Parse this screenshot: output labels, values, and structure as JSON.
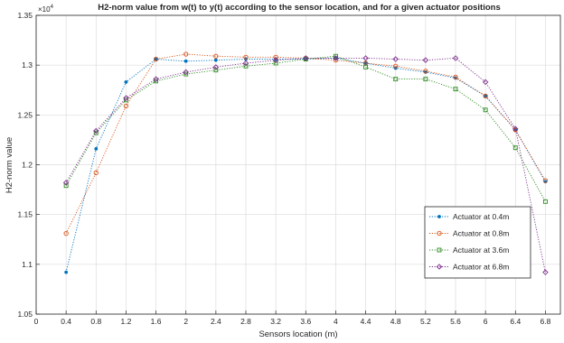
{
  "chart_data": {
    "type": "line",
    "title": "H2-norm value from w(t) to y(t) according to the sensor location, and for a given actuator positions",
    "xlabel": "Sensors location (m)",
    "ylabel": "H2-norm value",
    "y_exponent_label": "×10",
    "y_exponent_power": "4",
    "xlim": [
      0,
      7
    ],
    "ylim": [
      1.05,
      1.35
    ],
    "x_ticks": [
      "0",
      "0.4",
      "0.8",
      "1.2",
      "1.6",
      "2",
      "2.4",
      "2.8",
      "3.2",
      "3.6",
      "4",
      "4.4",
      "4.8",
      "5.2",
      "5.6",
      "6",
      "6.4",
      "6.8"
    ],
    "x_tick_values": [
      0,
      0.4,
      0.8,
      1.2,
      1.6,
      2,
      2.4,
      2.8,
      3.2,
      3.6,
      4,
      4.4,
      4.8,
      5.2,
      5.6,
      6,
      6.4,
      6.8
    ],
    "y_ticks": [
      "1.05",
      "1.1",
      "1.15",
      "1.2",
      "1.25",
      "1.3",
      "1.35"
    ],
    "y_tick_values": [
      1.05,
      1.1,
      1.15,
      1.2,
      1.25,
      1.3,
      1.35
    ],
    "grid": true,
    "legend_position": "bottom-right",
    "x": [
      0.4,
      0.8,
      1.2,
      1.6,
      2,
      2.4,
      2.8,
      3.2,
      3.6,
      4,
      4.4,
      4.8,
      5.2,
      5.6,
      6,
      6.4,
      6.8
    ],
    "series": [
      {
        "name": "Actuator at 0.4m",
        "color": "#0072BD",
        "marker": "point",
        "values": [
          1.092,
          1.216,
          1.283,
          1.306,
          1.304,
          1.305,
          1.306,
          1.306,
          1.306,
          1.307,
          1.302,
          1.297,
          1.293,
          1.287,
          1.269,
          1.235,
          1.183
        ]
      },
      {
        "name": "Actuator at 0.8m",
        "color": "#D95319",
        "marker": "circle",
        "values": [
          1.131,
          1.192,
          1.259,
          1.306,
          1.311,
          1.309,
          1.308,
          1.308,
          1.307,
          1.305,
          1.302,
          1.299,
          1.294,
          1.288,
          1.269,
          1.235,
          1.184
        ]
      },
      {
        "name": "Actuator at 3.6m",
        "color": "#2E8B22",
        "marker": "square",
        "values": [
          1.179,
          1.232,
          1.265,
          1.284,
          1.291,
          1.295,
          1.299,
          1.302,
          1.306,
          1.309,
          1.298,
          1.286,
          1.286,
          1.276,
          1.255,
          1.217,
          1.163
        ]
      },
      {
        "name": "Actuator at 6.8m",
        "color": "#7E2F8E",
        "marker": "diamond",
        "values": [
          1.182,
          1.234,
          1.267,
          1.286,
          1.293,
          1.298,
          1.302,
          1.305,
          1.307,
          1.307,
          1.307,
          1.306,
          1.305,
          1.307,
          1.283,
          1.236,
          1.092
        ]
      }
    ]
  }
}
